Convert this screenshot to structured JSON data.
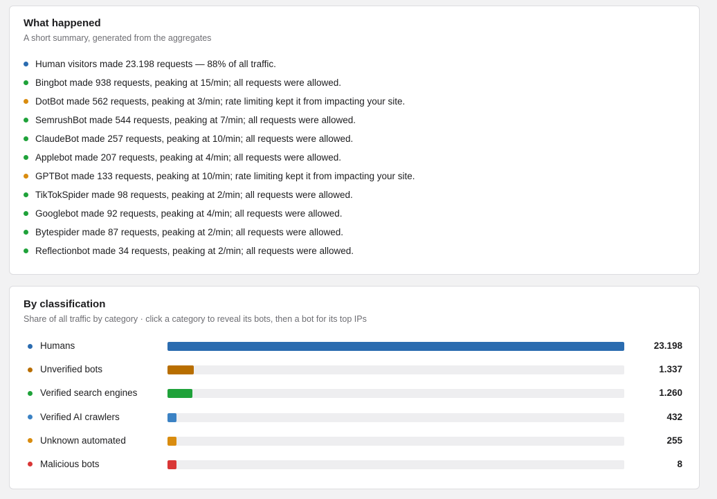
{
  "summary": {
    "title": "What happened",
    "subtitle": "A short summary, generated from the aggregates",
    "items": [
      {
        "text": "Human visitors made 23.198 requests — 88% of all traffic.",
        "color": "#2b6cb0"
      },
      {
        "text": "Bingbot made 938 requests, peaking at 15/min; all requests were allowed.",
        "color": "#1fa23a"
      },
      {
        "text": "DotBot made 562 requests, peaking at 3/min; rate limiting kept it from impacting your site.",
        "color": "#d98c0f"
      },
      {
        "text": "SemrushBot made 544 requests, peaking at 7/min; all requests were allowed.",
        "color": "#1fa23a"
      },
      {
        "text": "ClaudeBot made 257 requests, peaking at 10/min; all requests were allowed.",
        "color": "#1fa23a"
      },
      {
        "text": "Applebot made 207 requests, peaking at 4/min; all requests were allowed.",
        "color": "#1fa23a"
      },
      {
        "text": "GPTBot made 133 requests, peaking at 10/min; rate limiting kept it from impacting your site.",
        "color": "#d98c0f"
      },
      {
        "text": "TikTokSpider made 98 requests, peaking at 2/min; all requests were allowed.",
        "color": "#1fa23a"
      },
      {
        "text": "Googlebot made 92 requests, peaking at 4/min; all requests were allowed.",
        "color": "#1fa23a"
      },
      {
        "text": "Bytespider made 87 requests, peaking at 2/min; all requests were allowed.",
        "color": "#1fa23a"
      },
      {
        "text": "Reflectionbot made 34 requests, peaking at 2/min; all requests were allowed.",
        "color": "#1fa23a"
      }
    ]
  },
  "classification": {
    "title": "By classification",
    "subtitle": "Share of all traffic by category · click a category to reveal its bots, then a bot for its top IPs",
    "max": 23198,
    "rows": [
      {
        "label": "Humans",
        "count": "23.198",
        "value": 23198,
        "color": "#2b6cb0"
      },
      {
        "label": "Unverified bots",
        "count": "1.337",
        "value": 1337,
        "color": "#b86e00"
      },
      {
        "label": "Verified search engines",
        "count": "1.260",
        "value": 1260,
        "color": "#1fa23a"
      },
      {
        "label": "Verified AI crawlers",
        "count": "432",
        "value": 432,
        "color": "#3b82c4"
      },
      {
        "label": "Unknown automated",
        "count": "255",
        "value": 255,
        "color": "#d98c0f"
      },
      {
        "label": "Malicious bots",
        "count": "8",
        "value": 8,
        "color": "#d93636"
      }
    ]
  }
}
